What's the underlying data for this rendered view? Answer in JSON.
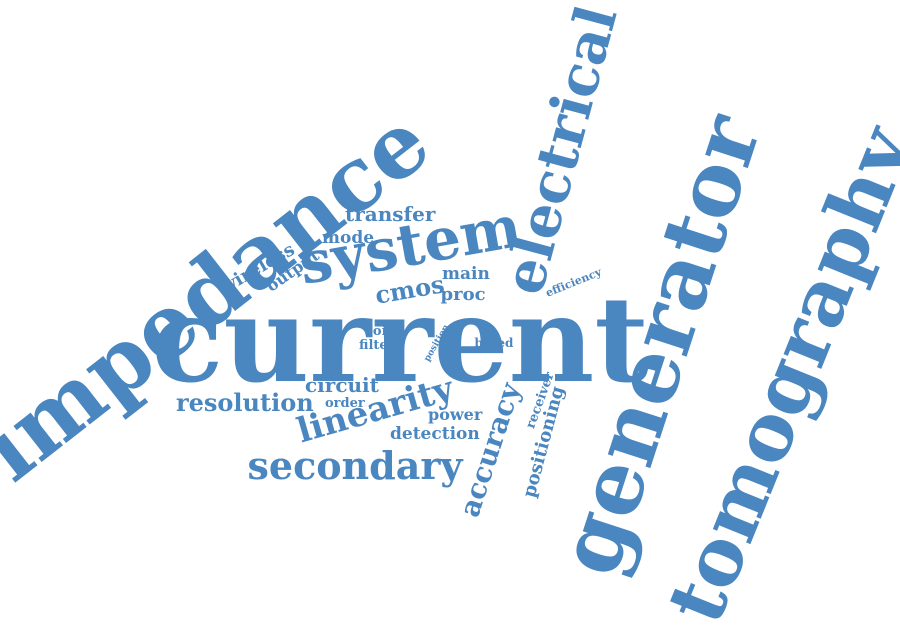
{
  "color": "#4a86bf",
  "background": "#ffffff",
  "words": [
    {
      "text": "current",
      "size": 118,
      "rot": 0
    },
    {
      "text": "impedance",
      "size": 88,
      "rot": -38
    },
    {
      "text": "generator",
      "size": 86,
      "rot": -72
    },
    {
      "text": "tomography",
      "size": 78,
      "rot": -68
    },
    {
      "text": "electrical",
      "size": 56,
      "rot": -75
    },
    {
      "text": "system",
      "size": 58,
      "rot": -10
    },
    {
      "text": "secondary",
      "size": 38,
      "rot": 0
    },
    {
      "text": "linearity",
      "size": 34,
      "rot": -16
    },
    {
      "text": "resolution",
      "size": 24,
      "rot": 0
    },
    {
      "text": "accuracy",
      "size": 28,
      "rot": -72
    },
    {
      "text": "positioning",
      "size": 18,
      "rot": -75
    },
    {
      "text": "transfer",
      "size": 20,
      "rot": 0
    },
    {
      "text": "wireless",
      "size": 18,
      "rot": -30
    },
    {
      "text": "output",
      "size": 16,
      "rot": -35
    },
    {
      "text": "mode",
      "size": 17,
      "rot": 0
    },
    {
      "text": "cmos",
      "size": 24,
      "rot": -10
    },
    {
      "text": "main",
      "size": 17,
      "rot": 0
    },
    {
      "text": "proc",
      "size": 18,
      "rot": 0
    },
    {
      "text": "efficiency",
      "size": 11,
      "rot": -22
    },
    {
      "text": "coil",
      "size": 13,
      "rot": 0
    },
    {
      "text": "filter",
      "size": 13,
      "rot": 0
    },
    {
      "text": "position",
      "size": 9,
      "rot": -60
    },
    {
      "text": "based",
      "size": 12,
      "rot": 0
    },
    {
      "text": "circuit",
      "size": 20,
      "rot": 0
    },
    {
      "text": "order",
      "size": 13,
      "rot": 0
    },
    {
      "text": "power",
      "size": 16,
      "rot": 0
    },
    {
      "text": "detection",
      "size": 17,
      "rot": 0
    },
    {
      "text": "receiver",
      "size": 13,
      "rot": -70
    }
  ]
}
